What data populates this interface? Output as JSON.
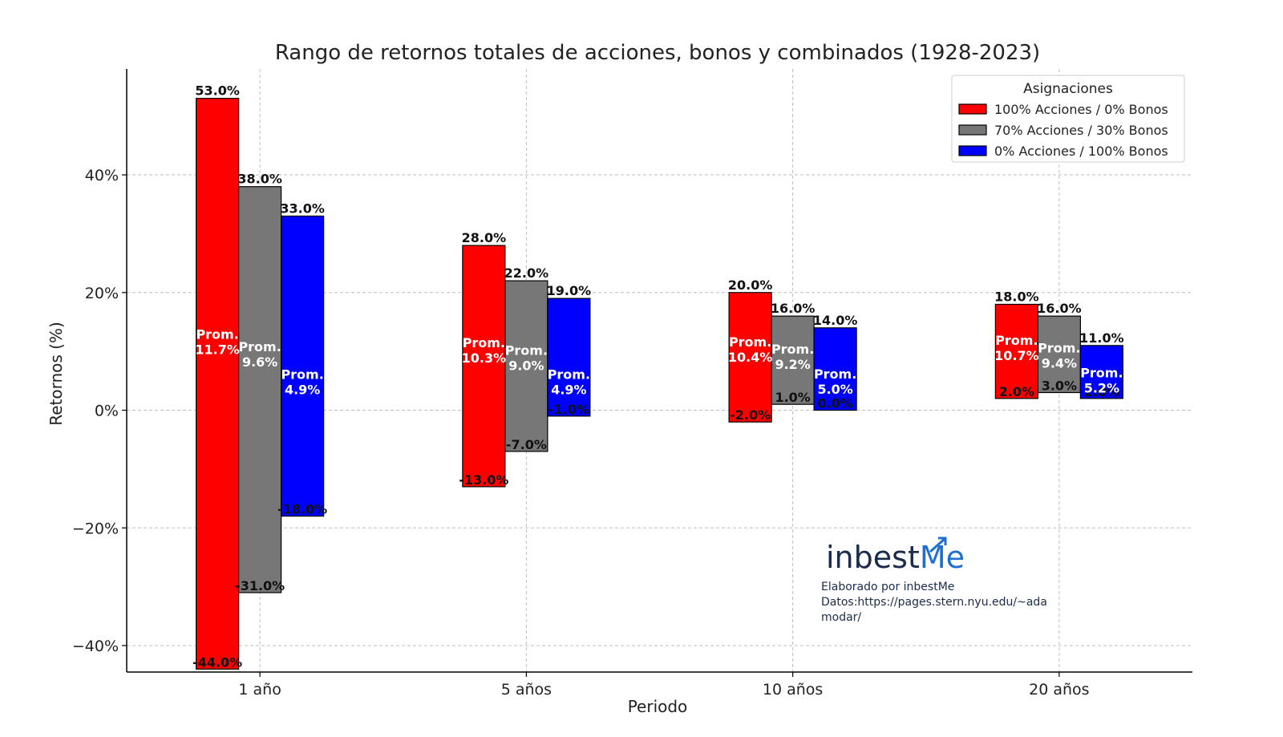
{
  "chart_data": {
    "type": "bar",
    "title": "Rango de retornos totales de acciones, bonos y combinados (1928-2023)",
    "xlabel": "Periodo",
    "ylabel": "Retornos (%)",
    "categories": [
      "1 año",
      "5 años",
      "10 años",
      "20 años"
    ],
    "ylim": [
      -44.5,
      58
    ],
    "yticks": [
      -40,
      -20,
      0,
      20,
      40
    ],
    "ytick_labels": [
      "−40%",
      "−20%",
      "0%",
      "20%",
      "40%"
    ],
    "grid": true,
    "legend": {
      "title": "Asignaciones",
      "placement": "top-right"
    },
    "avg_prefix": "Prom.",
    "series": [
      {
        "name": "100% Acciones / 0% Bonos",
        "color": "#ff0000",
        "max": [
          53.0,
          28.0,
          20.0,
          18.0
        ],
        "min": [
          -44.0,
          -13.0,
          -2.0,
          2.0
        ],
        "avg": [
          11.7,
          10.3,
          10.4,
          10.7
        ],
        "max_labels": [
          "53.0%",
          "28.0%",
          "20.0%",
          "18.0%"
        ],
        "min_labels": [
          "-44.0%",
          "-13.0%",
          "-2.0%",
          "2.0%"
        ],
        "avg_labels": [
          "11.7%",
          "10.3%",
          "10.4%",
          "10.7%"
        ]
      },
      {
        "name": "70% Acciones / 30% Bonos",
        "color": "#777777",
        "max": [
          38.0,
          22.0,
          16.0,
          16.0
        ],
        "min": [
          -31.0,
          -7.0,
          1.0,
          3.0
        ],
        "avg": [
          9.6,
          9.0,
          9.2,
          9.4
        ],
        "max_labels": [
          "38.0%",
          "22.0%",
          "16.0%",
          "16.0%"
        ],
        "min_labels": [
          "-31.0%",
          "-7.0%",
          "1.0%",
          "3.0%"
        ],
        "avg_labels": [
          "9.6%",
          "9.0%",
          "9.2%",
          "9.4%"
        ]
      },
      {
        "name": "0% Acciones / 100% Bonos",
        "color": "#0000ff",
        "max": [
          33.0,
          19.0,
          14.0,
          11.0
        ],
        "min": [
          -18.0,
          -1.0,
          0.0,
          2.0
        ],
        "avg": [
          4.9,
          4.9,
          5.0,
          5.2
        ],
        "max_labels": [
          "33.0%",
          "19.0%",
          "14.0%",
          "11.0%"
        ],
        "min_labels": [
          "-18.0%",
          "-1.0%",
          "0.0%",
          "2.0%"
        ],
        "avg_labels": [
          "4.9%",
          "4.9%",
          "5.0%",
          "5.2%"
        ]
      }
    ]
  },
  "watermark": {
    "brand_pre": "inbest",
    "brand_post": "Me",
    "credit": "Elaborado por inbestMe",
    "source_line1": "Datos:https://pages.stern.nyu.edu/~ada",
    "source_line2": "modar/"
  }
}
